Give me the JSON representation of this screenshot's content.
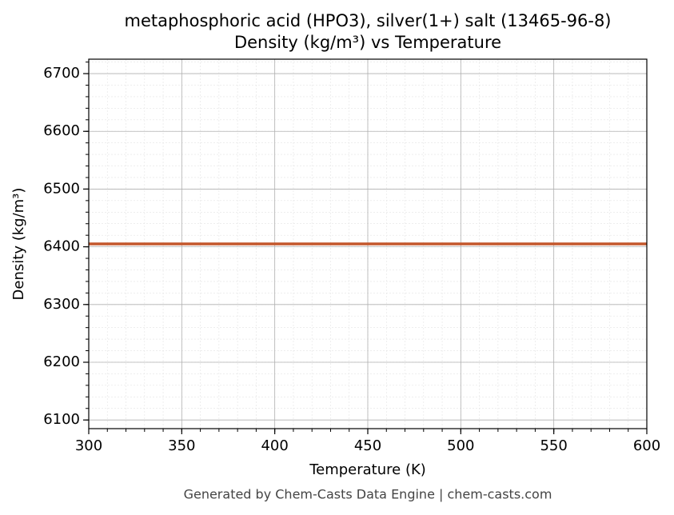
{
  "chart_data": {
    "type": "line",
    "title": "metaphosphoric acid (HPO3), silver(1+) salt (13465-96-8)",
    "subtitle": "Density (kg/m³) vs Temperature",
    "x_label": "Temperature (K)",
    "y_label": "Density (kg/m³)",
    "footer": "Generated by Chem-Casts Data Engine | chem-casts.com",
    "x": [
      300,
      600
    ],
    "series": [
      {
        "name": "Density",
        "color": "#c4572c",
        "values": [
          6405,
          6405
        ]
      }
    ],
    "xlim": [
      300,
      600
    ],
    "xticks": [
      300,
      350,
      400,
      450,
      500,
      550,
      600
    ],
    "ylim": [
      6085,
      6725
    ],
    "yticks": [
      6100,
      6200,
      6300,
      6400,
      6500,
      6600,
      6700
    ],
    "grid": true,
    "minor_grid": true
  }
}
